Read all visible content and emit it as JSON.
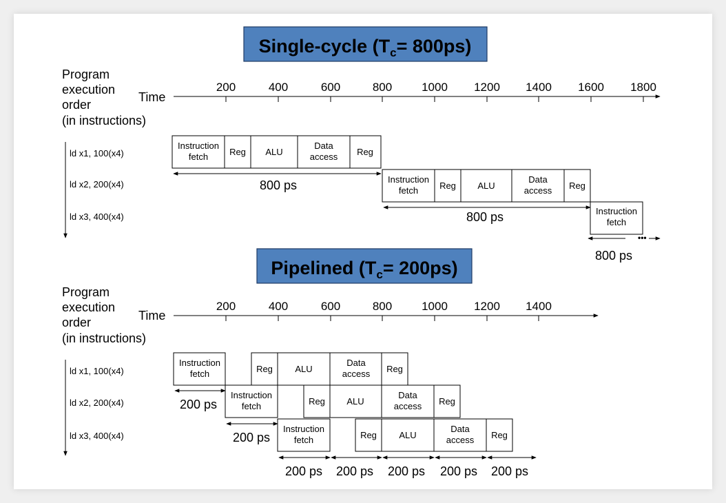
{
  "single": {
    "title": "Single-cycle (T",
    "title_sub": "c",
    "title_tail": "= 800ps)",
    "axis_label_lines": [
      "Program",
      "execution",
      "order",
      "(in instructions)"
    ],
    "time_label": "Time",
    "ticks": [
      "200",
      "400",
      "600",
      "800",
      "1000",
      "1200",
      "1400",
      "1600",
      "1800"
    ],
    "instructions": [
      "ld x1, 100(x4)",
      "ld x2, 200(x4)",
      "ld x3, 400(x4)"
    ],
    "stages": {
      "if_line1": "Instruction",
      "if_line2": "fetch",
      "reg": "Reg",
      "alu": "ALU",
      "dm_line1": "Data",
      "dm_line2": "access"
    },
    "durations": [
      "800 ps",
      "800 ps",
      "800 ps"
    ]
  },
  "pipelined": {
    "title": "Pipelined (T",
    "title_sub": "c",
    "title_tail": "= 200ps)",
    "axis_label_lines": [
      "Program",
      "execution",
      "order",
      "(in instructions)"
    ],
    "time_label": "Time",
    "ticks": [
      "200",
      "400",
      "600",
      "800",
      "1000",
      "1200",
      "1400"
    ],
    "instructions": [
      "ld x1, 100(x4)",
      "ld x2, 200(x4)",
      "ld x3, 400(x4)"
    ],
    "stages": {
      "if_line1": "Instruction",
      "if_line2": "fetch",
      "reg": "Reg",
      "alu": "ALU",
      "dm_line1": "Data",
      "dm_line2": "access"
    },
    "durations": [
      "200 ps",
      "200 ps",
      "200 ps",
      "200 ps",
      "200 ps",
      "200 ps",
      "200 ps"
    ]
  },
  "colors": {
    "title_box": "#4f81bd"
  }
}
